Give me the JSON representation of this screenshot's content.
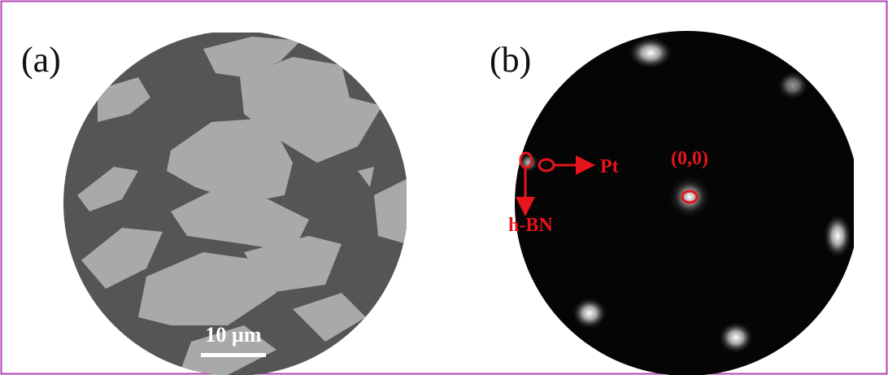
{
  "panel_a": {
    "label": "(a)",
    "scale_bar": "10 µm"
  },
  "panel_b": {
    "label": "(b)",
    "annotations": {
      "origin": "(0,0)",
      "pt": "Pt",
      "hbn": "h-BN"
    }
  }
}
